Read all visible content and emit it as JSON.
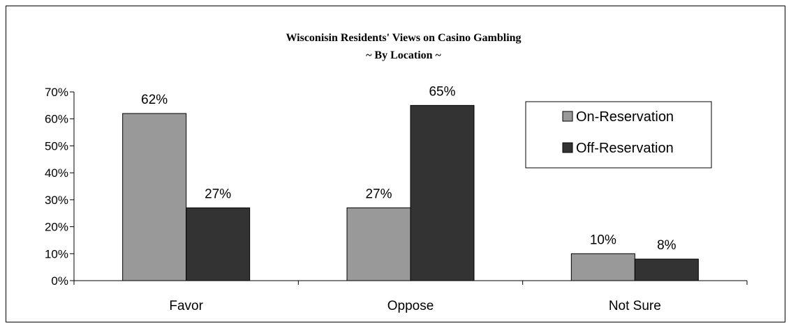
{
  "chart_data": {
    "type": "bar",
    "title": "Wisconisin Residents' Views on Casino Gambling",
    "subtitle": "~ By Location ~",
    "categories": [
      "Favor",
      "Oppose",
      "Not Sure"
    ],
    "series": [
      {
        "name": "On-Reservation",
        "values": [
          62,
          27,
          10
        ],
        "labels": [
          "62%",
          "27%",
          "10%"
        ],
        "color": "#999999"
      },
      {
        "name": "Off-Reservation",
        "values": [
          27,
          65,
          8
        ],
        "labels": [
          "27%",
          "65%",
          "8%"
        ],
        "color": "#333333"
      }
    ],
    "ylim": [
      0,
      70
    ],
    "yticks": [
      0,
      10,
      20,
      30,
      40,
      50,
      60,
      70
    ],
    "ytick_labels": [
      "0%",
      "10%",
      "20%",
      "30%",
      "40%",
      "50%",
      "60%",
      "70%"
    ],
    "grid": false,
    "legend_position": "top-right"
  }
}
